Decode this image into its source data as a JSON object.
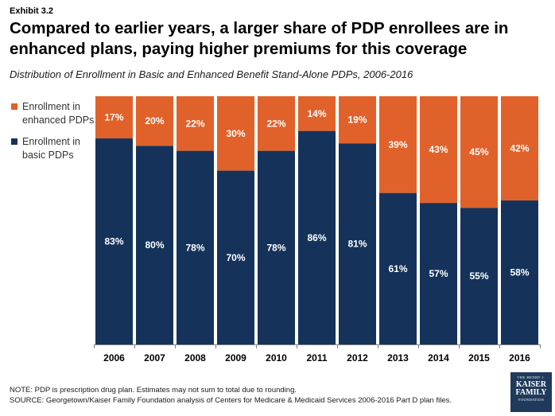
{
  "header": {
    "exhibit": "Exhibit 3.2",
    "title": "Compared to earlier years, a larger share of PDP enrollees are in enhanced plans, paying higher premiums for this coverage",
    "subtitle": "Distribution of Enrollment in Basic and Enhanced Benefit Stand-Alone PDPs, 2006-2016"
  },
  "legend": {
    "enhanced": "Enrollment in enhanced PDPs",
    "basic": "Enrollment in basic PDPs"
  },
  "colors": {
    "enhanced": "#E0622A",
    "basic": "#15335A"
  },
  "chart_data": {
    "type": "bar",
    "stacked": true,
    "categories": [
      "2006",
      "2007",
      "2008",
      "2009",
      "2010",
      "2011",
      "2012",
      "2013",
      "2014",
      "2015",
      "2016"
    ],
    "series": [
      {
        "name": "Enrollment in basic PDPs",
        "values": [
          83,
          80,
          78,
          70,
          78,
          86,
          81,
          61,
          57,
          55,
          58
        ]
      },
      {
        "name": "Enrollment in enhanced PDPs",
        "values": [
          17,
          20,
          22,
          30,
          22,
          14,
          19,
          39,
          43,
          45,
          42
        ]
      }
    ],
    "ylim": [
      0,
      100
    ],
    "grid": false,
    "legend_position": "left"
  },
  "footer": {
    "note": "NOTE: PDP is prescription drug plan. Estimates may not sum to total due to rounding.",
    "source": "SOURCE: Georgetown/Kaiser Family Foundation analysis of Centers for Medicare & Medicaid Services 2006-2016 Part D plan files."
  },
  "logo": {
    "line1": "THE HENRY J.",
    "line2": "KAISER FAMILY",
    "line3": "FOUNDATION"
  }
}
